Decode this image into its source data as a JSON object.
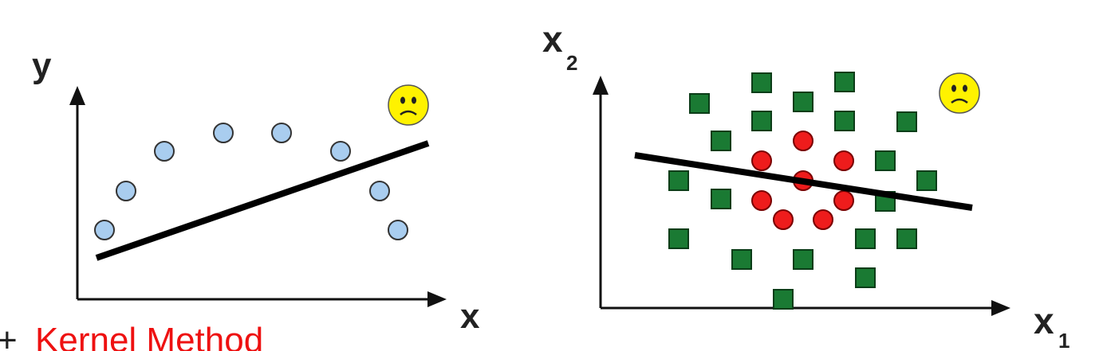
{
  "colors": {
    "axis": "#111111",
    "blue_point_fill": "#a9cdef",
    "blue_point_stroke": "#333333",
    "green_square": "#1a7a33",
    "red_circle": "#ee1c1c",
    "line": "#000000",
    "smiley_fill": "#fff200",
    "bottom_text": "#ee1111"
  },
  "left_panel": {
    "y_axis_label": "y",
    "x_axis_label": "x",
    "icon": "sad-face-icon"
  },
  "right_panel": {
    "y_axis_label": "x",
    "y_axis_subscript": "2",
    "x_axis_label": "x",
    "x_axis_subscript": "1",
    "icon": "sad-face-icon"
  },
  "bottom_text": {
    "bullet": "+",
    "text": "Kernel Method"
  }
}
